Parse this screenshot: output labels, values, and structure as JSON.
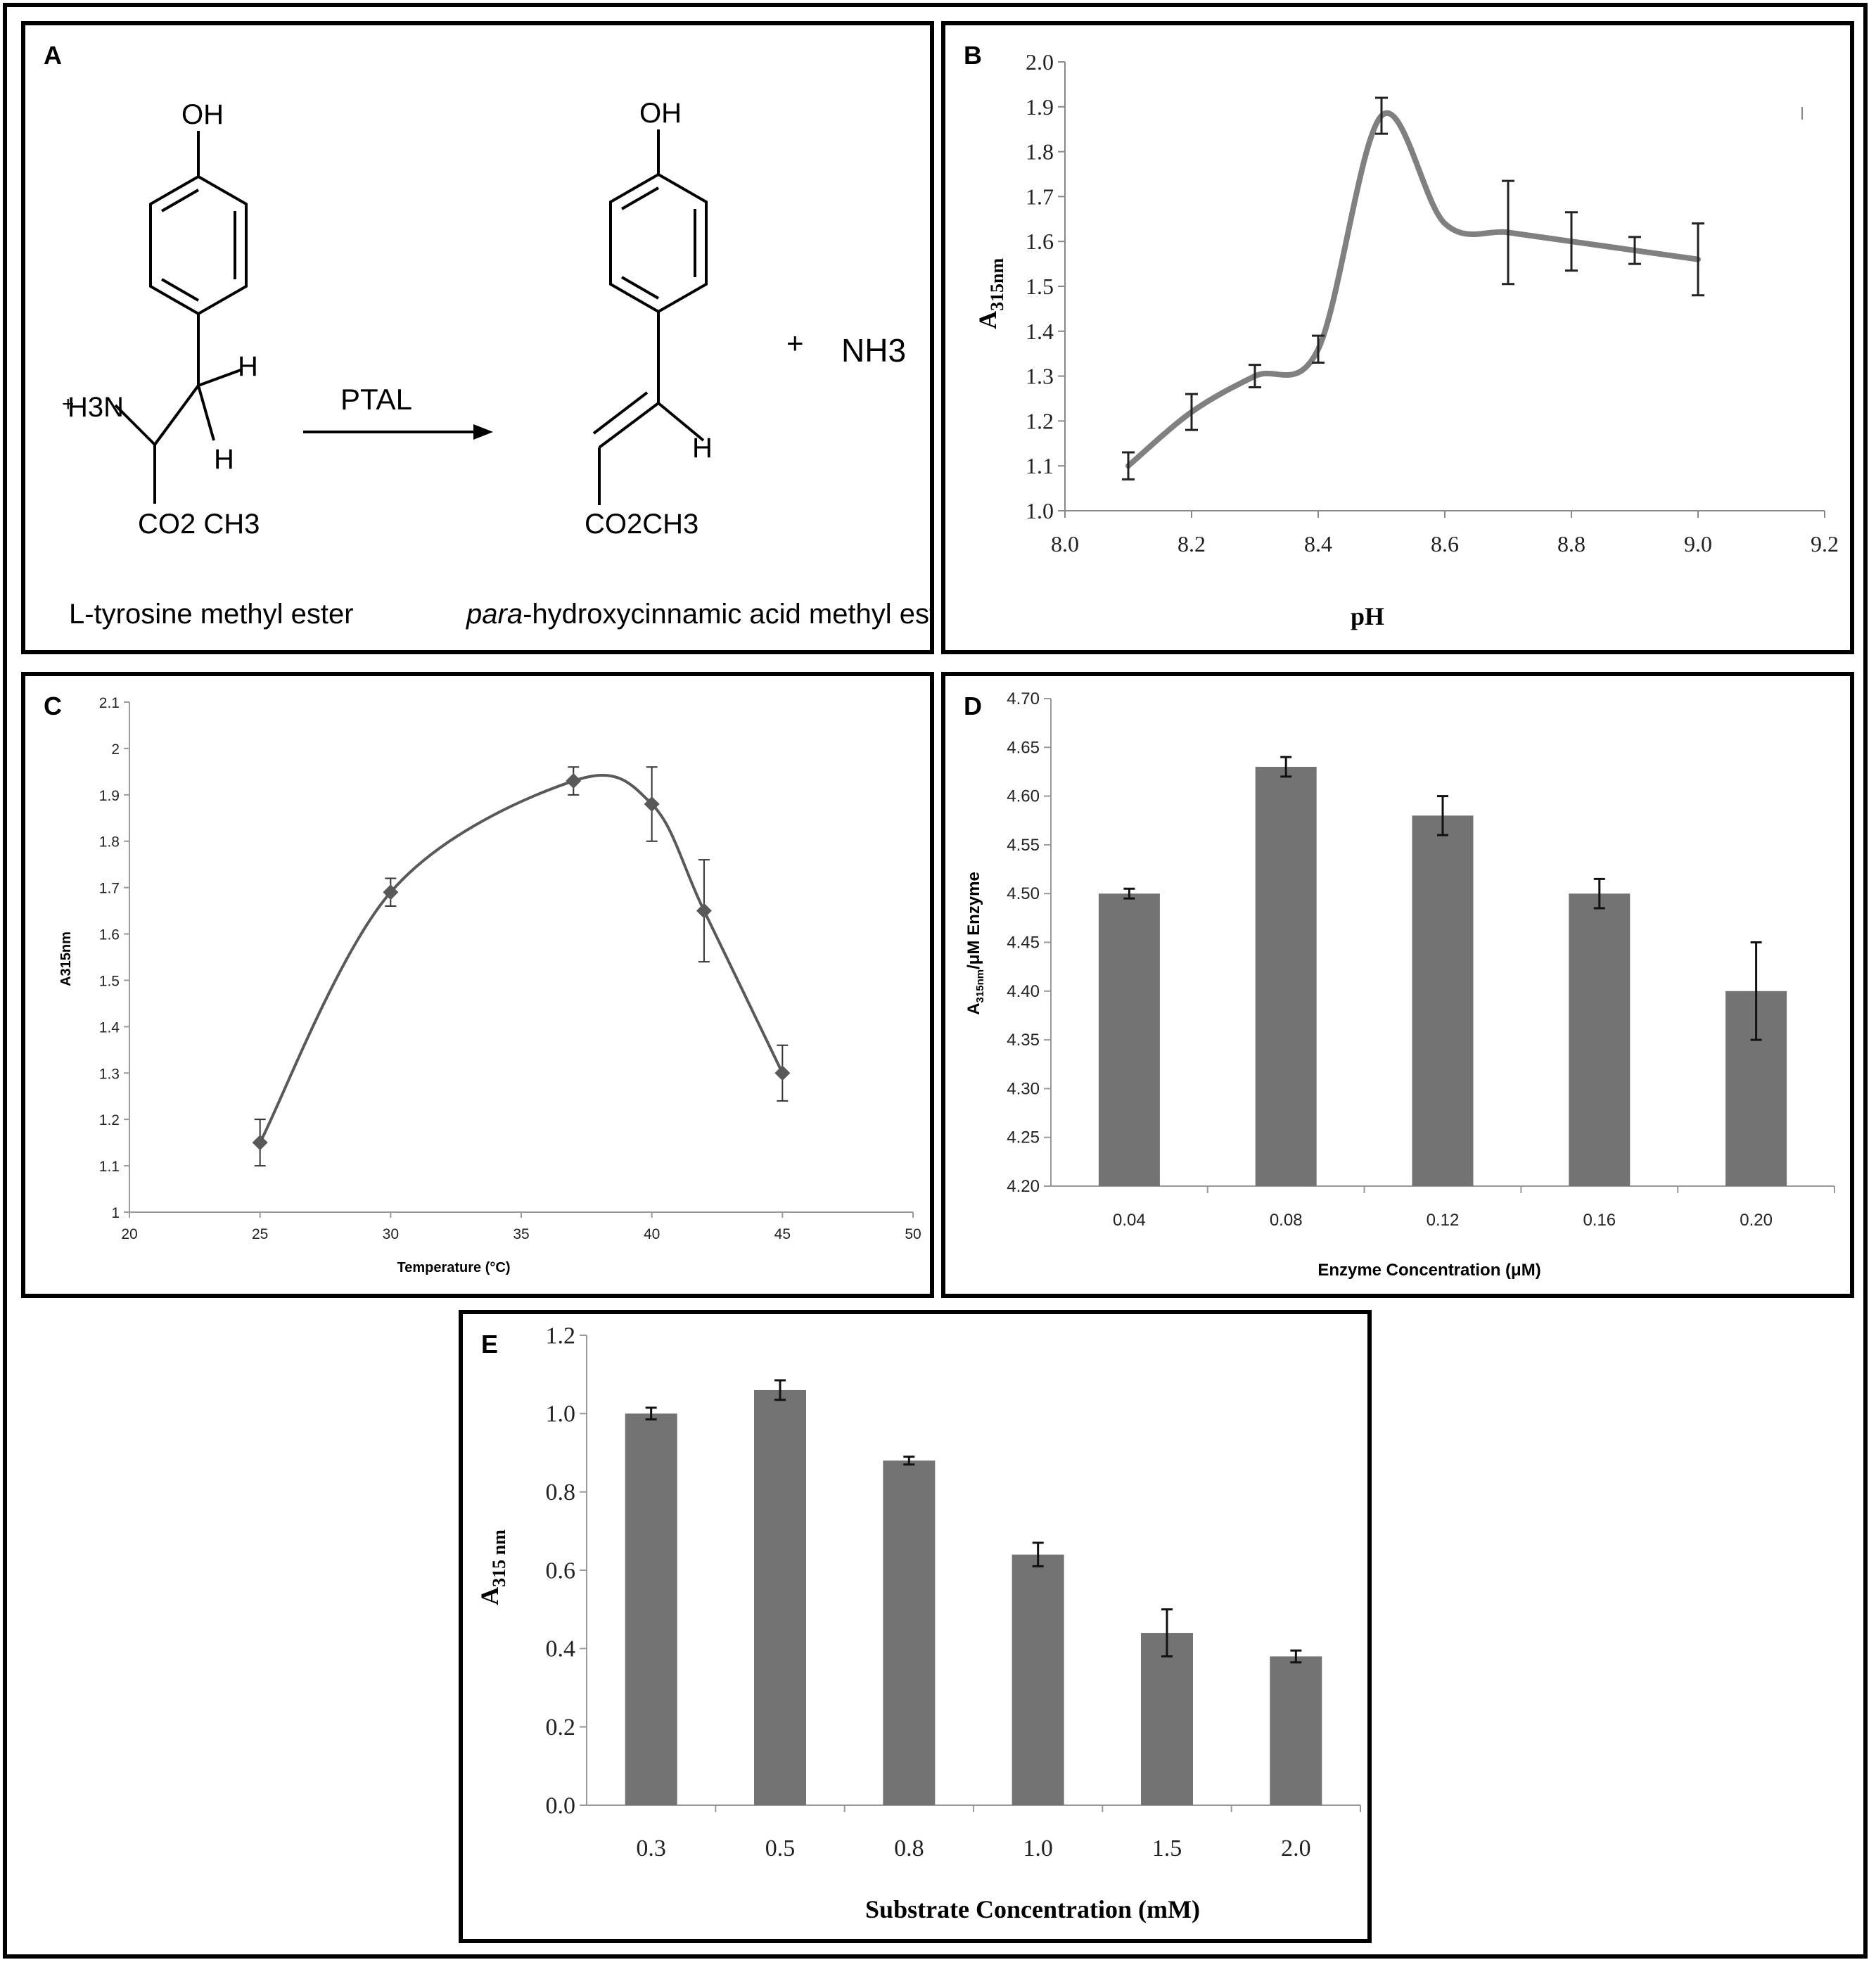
{
  "figure": {
    "panel_labels": [
      "A",
      "B",
      "C",
      "D",
      "E"
    ]
  },
  "reaction": {
    "oh_left": "OH",
    "oh_right": "OH",
    "amine": "H3N",
    "h_top": "H",
    "h_bottom": "H",
    "ester_left": "CO2 CH3",
    "enzyme": "PTAL",
    "h_alkene": "H",
    "ester_right": "CO2CH3",
    "plus": "+",
    "byproduct": "NH3",
    "substrate_name": "L-tyrosine methyl ester",
    "product_name_italic": "para",
    "product_name_rest": "-hydroxycinnamic acid methyl ester"
  },
  "chart_data": [
    {
      "panel": "B",
      "type": "line",
      "xlabel": "pH",
      "ylabel_main": "A",
      "ylabel_sub": "315nm",
      "xlim": [
        8.0,
        9.2
      ],
      "ylim": [
        1.0,
        2.0
      ],
      "xticks": [
        "8.0",
        "8.2",
        "8.4",
        "8.6",
        "8.8",
        "9.0",
        "9.2"
      ],
      "yticks": [
        "1.0",
        "1.1",
        "1.2",
        "1.3",
        "1.4",
        "1.5",
        "1.6",
        "1.7",
        "1.8",
        "1.9",
        "2.0"
      ],
      "x": [
        8.1,
        8.2,
        8.3,
        8.4,
        8.5,
        8.6,
        8.7,
        8.8,
        8.9,
        9.0
      ],
      "y": [
        1.1,
        1.22,
        1.3,
        1.36,
        1.88,
        1.64,
        1.62,
        1.6,
        1.58,
        1.56
      ],
      "err": [
        0.03,
        0.04,
        0.025,
        0.03,
        0.04,
        0.0,
        0.115,
        0.065,
        0.03,
        0.08
      ],
      "color": "#808080"
    },
    {
      "panel": "C",
      "type": "line",
      "xlabel": "Temperature (°C)",
      "ylabel": "A315nm",
      "xlim": [
        20,
        50
      ],
      "ylim": [
        1,
        2.1
      ],
      "xticks": [
        "20",
        "25",
        "30",
        "35",
        "40",
        "45",
        "50"
      ],
      "yticks": [
        "1",
        "1.1",
        "1.2",
        "1.3",
        "1.4",
        "1.5",
        "1.6",
        "1.7",
        "1.8",
        "1.9",
        "2",
        "2.1"
      ],
      "x": [
        25,
        30,
        37,
        40,
        42,
        45
      ],
      "y": [
        1.15,
        1.69,
        1.93,
        1.88,
        1.65,
        1.3
      ],
      "err": [
        0.05,
        0.03,
        0.03,
        0.08,
        0.11,
        0.06
      ],
      "marker": "diamond",
      "color": "#595959"
    },
    {
      "panel": "D",
      "type": "bar",
      "xlabel": "Enzyme Concentration (μM)",
      "ylabel_main": "A",
      "ylabel_sub": "315nm",
      "ylabel_rest": "/μM Enzyme",
      "categories": [
        "0.04",
        "0.08",
        "0.12",
        "0.16",
        "0.20"
      ],
      "values": [
        4.5,
        4.63,
        4.58,
        4.5,
        4.4
      ],
      "err": [
        0.005,
        0.01,
        0.02,
        0.015,
        0.05
      ],
      "ylim": [
        4.2,
        4.7
      ],
      "yticks": [
        "4.20",
        "4.25",
        "4.30",
        "4.35",
        "4.40",
        "4.45",
        "4.50",
        "4.55",
        "4.60",
        "4.65",
        "4.70"
      ],
      "color": "#737373"
    },
    {
      "panel": "E",
      "type": "bar",
      "xlabel": "Substrate Concentration (mM)",
      "ylabel_main": "A",
      "ylabel_sub": "315 nm",
      "categories": [
        "0.3",
        "0.5",
        "0.8",
        "1.0",
        "1.5",
        "2.0"
      ],
      "values": [
        1.0,
        1.06,
        0.88,
        0.64,
        0.44,
        0.38
      ],
      "err": [
        0.015,
        0.025,
        0.01,
        0.03,
        0.06,
        0.015
      ],
      "ylim": [
        0.0,
        1.2
      ],
      "yticks": [
        "0.0",
        "0.2",
        "0.4",
        "0.6",
        "0.8",
        "1.0",
        "1.2"
      ],
      "color": "#737373"
    }
  ]
}
